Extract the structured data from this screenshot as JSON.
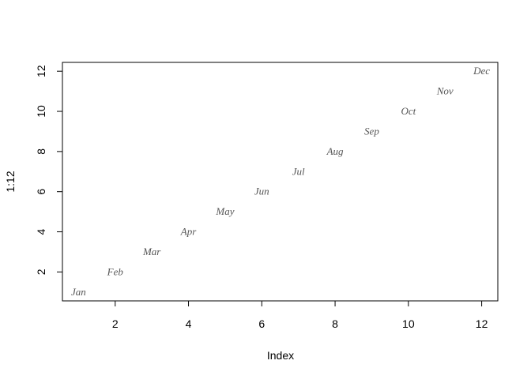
{
  "chart_data": {
    "type": "scatter",
    "x": [
      1,
      2,
      3,
      4,
      5,
      6,
      7,
      8,
      9,
      10,
      11,
      12
    ],
    "y": [
      1,
      2,
      3,
      4,
      5,
      6,
      7,
      8,
      9,
      10,
      11,
      12
    ],
    "point_labels": [
      "Jan",
      "Feb",
      "Mar",
      "Apr",
      "May",
      "Jun",
      "Jul",
      "Aug",
      "Sep",
      "Oct",
      "Nov",
      "Dec"
    ],
    "color": "#555555",
    "xlabel": "Index",
    "ylabel": "1:12",
    "xlim": [
      0.56,
      12.44
    ],
    "ylim": [
      0.56,
      12.44
    ],
    "xticks": [
      2,
      4,
      6,
      8,
      10,
      12
    ],
    "yticks": [
      2,
      4,
      6,
      8,
      10,
      12
    ]
  }
}
